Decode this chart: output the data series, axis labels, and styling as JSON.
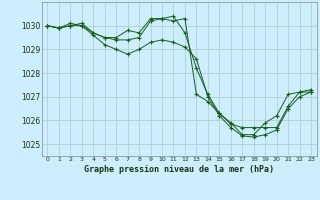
{
  "title": "Graphe pression niveau de la mer (hPa)",
  "bg_color": "#cceeff",
  "grid_color": "#aacccc",
  "line_color": "#1a5c1a",
  "marker_color": "#1a5c1a",
  "xlim": [
    -0.5,
    23.5
  ],
  "ylim": [
    1024.5,
    1031.0
  ],
  "yticks": [
    1025,
    1026,
    1027,
    1028,
    1029,
    1030
  ],
  "xticks": [
    0,
    1,
    2,
    3,
    4,
    5,
    6,
    7,
    8,
    9,
    10,
    11,
    12,
    13,
    14,
    15,
    16,
    17,
    18,
    19,
    20,
    21,
    22,
    23
  ],
  "series": [
    [
      1030.0,
      1029.9,
      1030.1,
      1030.0,
      1029.7,
      1029.5,
      1029.5,
      1029.8,
      1029.7,
      1030.3,
      1030.3,
      1030.4,
      1029.7,
      1028.2,
      1027.1,
      1026.3,
      1025.9,
      1025.4,
      1025.4,
      1025.9,
      1026.2,
      1027.1,
      1027.2,
      1027.3
    ],
    [
      1030.0,
      1029.9,
      1030.0,
      1030.0,
      1029.6,
      1029.2,
      1029.0,
      1028.8,
      1029.0,
      1029.3,
      1029.4,
      1029.3,
      1029.1,
      1028.6,
      1027.0,
      1026.2,
      1025.7,
      1025.35,
      1025.3,
      1025.4,
      1025.6,
      1026.5,
      1027.0,
      1027.2
    ],
    [
      1030.0,
      1029.9,
      1030.0,
      1030.1,
      1029.7,
      1029.5,
      1029.4,
      1029.4,
      1029.5,
      1030.2,
      1030.3,
      1030.2,
      1030.3,
      1027.1,
      1026.8,
      1026.3,
      1025.85,
      1025.7,
      1025.7,
      1025.7,
      1025.7,
      1026.6,
      1027.2,
      1027.2
    ]
  ]
}
